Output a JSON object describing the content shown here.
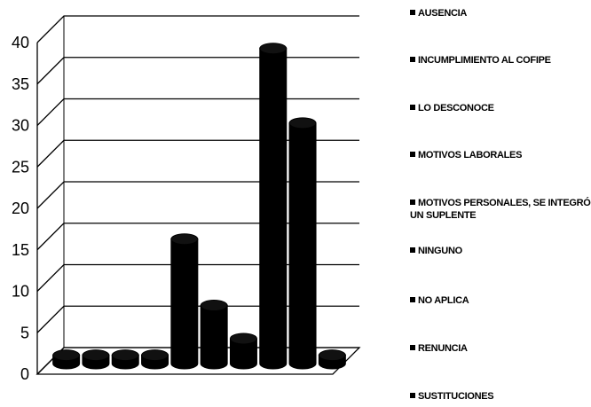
{
  "chart_data": {
    "type": "bar",
    "style": "3d-column",
    "title": "",
    "xlabel": "",
    "ylabel": "",
    "ylim": [
      0,
      40
    ],
    "y_ticks": [
      0,
      5,
      10,
      15,
      20,
      25,
      30,
      35,
      40
    ],
    "grid": true,
    "legend_position": "right",
    "bar_color": "#000000",
    "series": [
      {
        "name": "AUSENCIA",
        "value": 1
      },
      {
        "name": "INCUMPLIMIENTO AL COFIPE",
        "value": 1
      },
      {
        "name": "LO DESCONOCE",
        "value": 1
      },
      {
        "name": "MOTIVOS LABORALES",
        "value": 1
      },
      {
        "name": "MOTIVOS PERSONALES, SE INTEGRÓ\nUN SUPLENTE",
        "value": 15
      },
      {
        "name": "NINGUNO",
        "value": 7
      },
      {
        "name": "NO APLICA",
        "value": 3
      },
      {
        "name": "RENUNCIA",
        "value": 38
      },
      {
        "name": "SUSTITUCIONES",
        "value": 29
      },
      {
        "name": "",
        "value": 1
      }
    ],
    "legend": [
      "AUSENCIA",
      "INCUMPLIMIENTO AL COFIPE",
      "LO DESCONOCE",
      "MOTIVOS LABORALES",
      "MOTIVOS PERSONALES, SE INTEGRÓ\nUN SUPLENTE",
      "NINGUNO",
      "NO APLICA",
      "RENUNCIA",
      "SUSTITUCIONES"
    ]
  }
}
